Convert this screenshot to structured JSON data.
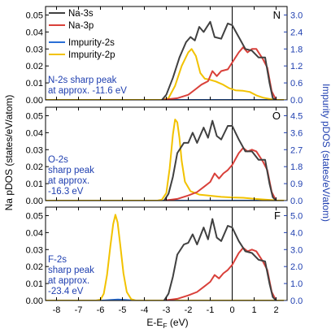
{
  "chart_data": {
    "type": "line",
    "x_axis": {
      "label": "E-E",
      "label_sub": "F",
      "label_tail": " (eV)",
      "ticks": [
        "-8",
        "-7",
        "-6",
        "-5",
        "-4",
        "-3",
        "-2",
        "-1",
        "0",
        "1",
        "2"
      ],
      "xlim": [
        -8.5,
        2.5
      ]
    },
    "left_axis_label": "Na pDOS (states/eV/atom)",
    "right_axis_label": "Impurity pDOS (states/eV/atom)",
    "legend": [
      {
        "name": "Na-3s",
        "color": "#404040"
      },
      {
        "name": "Na-3p",
        "color": "#d9403a"
      },
      {
        "name": "Impurity-2s",
        "color": "#2a6fd6"
      },
      {
        "name": "Impurity-2p",
        "color": "#f2c200"
      }
    ],
    "colors": {
      "na3s": "#404040",
      "na3p": "#d9403a",
      "imp2s": "#2a6fd6",
      "imp2p": "#f2c200",
      "right_axis": "#1f3fb0"
    },
    "panels": [
      {
        "label": "N",
        "annotation": [
          "N-2s sharp peak",
          "at approx. -11.6 eV"
        ],
        "ylim_left": [
          0,
          0.055
        ],
        "yticks_left": [
          "0.00",
          "0.01",
          "0.02",
          "0.03",
          "0.04",
          "0.05"
        ],
        "ylim_right": [
          0,
          3.3
        ],
        "yticks_right": [
          "0.0",
          "0.6",
          "1.2",
          "1.8",
          "2.4",
          "3.0"
        ],
        "na3s": [
          [
            -3.2,
            0
          ],
          [
            -3.0,
            0.003
          ],
          [
            -2.7,
            0.013
          ],
          [
            -2.4,
            0.025
          ],
          [
            -2.1,
            0.034
          ],
          [
            -1.9,
            0.037
          ],
          [
            -1.7,
            0.035
          ],
          [
            -1.5,
            0.043
          ],
          [
            -1.3,
            0.04
          ],
          [
            -1.0,
            0.046
          ],
          [
            -0.8,
            0.037
          ],
          [
            -0.5,
            0.036
          ],
          [
            -0.2,
            0.045
          ],
          [
            0,
            0.044
          ],
          [
            0.3,
            0.037
          ],
          [
            0.6,
            0.03
          ],
          [
            0.9,
            0.029
          ],
          [
            1.2,
            0.025
          ],
          [
            1.5,
            0.025
          ],
          [
            1.7,
            0.01
          ],
          [
            1.85,
            0.001
          ],
          [
            2.0,
            0
          ]
        ],
        "na3p": [
          [
            -3.2,
            0
          ],
          [
            -2.5,
            0.001
          ],
          [
            -2.0,
            0.003
          ],
          [
            -1.7,
            0.006
          ],
          [
            -1.4,
            0.009
          ],
          [
            -1.1,
            0.011
          ],
          [
            -0.9,
            0.017
          ],
          [
            -0.7,
            0.014
          ],
          [
            -0.5,
            0.017
          ],
          [
            -0.2,
            0.018
          ],
          [
            0,
            0.022
          ],
          [
            0.3,
            0.028
          ],
          [
            0.5,
            0.031
          ],
          [
            0.7,
            0.028
          ],
          [
            0.9,
            0.03
          ],
          [
            1.1,
            0.03
          ],
          [
            1.4,
            0.024
          ],
          [
            1.6,
            0.019
          ],
          [
            1.8,
            0.005
          ],
          [
            2.0,
            0
          ]
        ],
        "imp2s": [
          [
            -8.5,
            0
          ],
          [
            2.5,
            0
          ]
        ],
        "imp2p": [
          [
            -8.5,
            0
          ],
          [
            -3.2,
            0
          ],
          [
            -2.9,
            0.06
          ],
          [
            -2.6,
            0.5
          ],
          [
            -2.3,
            1.2
          ],
          [
            -2.0,
            1.68
          ],
          [
            -1.85,
            1.8
          ],
          [
            -1.65,
            1.55
          ],
          [
            -1.45,
            0.95
          ],
          [
            -1.25,
            0.75
          ],
          [
            -1.05,
            0.72
          ],
          [
            -0.75,
            0.65
          ],
          [
            -0.45,
            0.55
          ],
          [
            -0.15,
            0.42
          ],
          [
            0.15,
            0.34
          ],
          [
            0.5,
            0.32
          ],
          [
            0.8,
            0.28
          ],
          [
            1.1,
            0.16
          ],
          [
            1.4,
            0.08
          ],
          [
            1.8,
            0.02
          ],
          [
            2.1,
            0
          ],
          [
            2.5,
            0
          ]
        ]
      },
      {
        "label": "O",
        "annotation": [
          "O-2s",
          "sharp peak",
          "at approx.",
          "-16.3 eV"
        ],
        "ylim_left": [
          0,
          0.055
        ],
        "yticks_left": [
          "0.00",
          "0.01",
          "0.02",
          "0.03",
          "0.04",
          "0.05"
        ],
        "ylim_right": [
          0,
          4.95
        ],
        "yticks_right": [
          "0.0",
          "0.9",
          "1.8",
          "2.7",
          "3.6",
          "4.5"
        ],
        "na3s": [
          [
            -3.1,
            0
          ],
          [
            -2.9,
            0.004
          ],
          [
            -2.7,
            0.014
          ],
          [
            -2.5,
            0.028
          ],
          [
            -2.2,
            0.034
          ],
          [
            -2.0,
            0.034
          ],
          [
            -1.8,
            0.04
          ],
          [
            -1.6,
            0.034
          ],
          [
            -1.3,
            0.043
          ],
          [
            -1.1,
            0.037
          ],
          [
            -0.9,
            0.047
          ],
          [
            -0.7,
            0.038
          ],
          [
            -0.5,
            0.036
          ],
          [
            -0.2,
            0.044
          ],
          [
            0,
            0.044
          ],
          [
            0.3,
            0.036
          ],
          [
            0.6,
            0.029
          ],
          [
            0.9,
            0.029
          ],
          [
            1.2,
            0.024
          ],
          [
            1.5,
            0.024
          ],
          [
            1.7,
            0.01
          ],
          [
            1.85,
            0.002
          ],
          [
            2.0,
            0
          ]
        ],
        "na3p": [
          [
            -3.1,
            0
          ],
          [
            -2.5,
            0.001
          ],
          [
            -2.0,
            0.003
          ],
          [
            -1.6,
            0.005
          ],
          [
            -1.3,
            0.008
          ],
          [
            -1.0,
            0.011
          ],
          [
            -0.8,
            0.016
          ],
          [
            -0.6,
            0.013
          ],
          [
            -0.4,
            0.016
          ],
          [
            -0.2,
            0.018
          ],
          [
            0,
            0.021
          ],
          [
            0.3,
            0.028
          ],
          [
            0.5,
            0.031
          ],
          [
            0.7,
            0.029
          ],
          [
            0.9,
            0.03
          ],
          [
            1.1,
            0.029
          ],
          [
            1.4,
            0.023
          ],
          [
            1.6,
            0.018
          ],
          [
            1.8,
            0.005
          ],
          [
            2.0,
            0
          ]
        ],
        "imp2s": [
          [
            -8.5,
            0
          ],
          [
            2.5,
            0
          ]
        ],
        "imp2p": [
          [
            -8.5,
            0
          ],
          [
            -3.4,
            0
          ],
          [
            -3.2,
            0.05
          ],
          [
            -3.0,
            0.4
          ],
          [
            -2.85,
            1.7
          ],
          [
            -2.7,
            3.5
          ],
          [
            -2.6,
            4.3
          ],
          [
            -2.5,
            4.15
          ],
          [
            -2.4,
            3.3
          ],
          [
            -2.3,
            2.1
          ],
          [
            -2.15,
            1.0
          ],
          [
            -1.9,
            0.5
          ],
          [
            -1.5,
            0.32
          ],
          [
            -1.0,
            0.26
          ],
          [
            -0.5,
            0.2
          ],
          [
            0,
            0.17
          ],
          [
            0.5,
            0.15
          ],
          [
            1.0,
            0.1
          ],
          [
            1.5,
            0.05
          ],
          [
            2.0,
            0.01
          ],
          [
            2.5,
            0
          ]
        ]
      },
      {
        "label": "F",
        "annotation": [
          "F-2s",
          "sharp peak",
          "at approx.",
          "-23.4 eV"
        ],
        "ylim_left": [
          0,
          0.055
        ],
        "yticks_left": [
          "0.00",
          "0.01",
          "0.02",
          "0.03",
          "0.04",
          "0.05"
        ],
        "ylim_right": [
          0,
          5.5
        ],
        "yticks_right": [
          "0.0",
          "1.0",
          "2.0",
          "3.0",
          "4.0",
          "5.0"
        ],
        "na3s": [
          [
            -3.1,
            0
          ],
          [
            -2.9,
            0.004
          ],
          [
            -2.7,
            0.014
          ],
          [
            -2.5,
            0.027
          ],
          [
            -2.2,
            0.033
          ],
          [
            -2.0,
            0.034
          ],
          [
            -1.8,
            0.039
          ],
          [
            -1.6,
            0.033
          ],
          [
            -1.3,
            0.043
          ],
          [
            -1.1,
            0.036
          ],
          [
            -0.9,
            0.048
          ],
          [
            -0.7,
            0.037
          ],
          [
            -0.5,
            0.035
          ],
          [
            -0.2,
            0.044
          ],
          [
            0,
            0.043
          ],
          [
            0.3,
            0.035
          ],
          [
            0.6,
            0.029
          ],
          [
            0.9,
            0.028
          ],
          [
            1.2,
            0.024
          ],
          [
            1.5,
            0.023
          ],
          [
            1.7,
            0.01
          ],
          [
            1.85,
            0.002
          ],
          [
            2.0,
            0
          ]
        ],
        "na3p": [
          [
            -3.1,
            0
          ],
          [
            -2.5,
            0.001
          ],
          [
            -2.0,
            0.003
          ],
          [
            -1.6,
            0.005
          ],
          [
            -1.3,
            0.008
          ],
          [
            -1.0,
            0.011
          ],
          [
            -0.8,
            0.015
          ],
          [
            -0.6,
            0.013
          ],
          [
            -0.4,
            0.016
          ],
          [
            -0.2,
            0.018
          ],
          [
            0,
            0.021
          ],
          [
            0.3,
            0.028
          ],
          [
            0.5,
            0.031
          ],
          [
            0.7,
            0.029
          ],
          [
            0.9,
            0.03
          ],
          [
            1.1,
            0.029
          ],
          [
            1.4,
            0.023
          ],
          [
            1.6,
            0.018
          ],
          [
            1.8,
            0.005
          ],
          [
            2.0,
            0
          ]
        ],
        "imp2s": [
          [
            -8.5,
            0
          ],
          [
            -5.9,
            0
          ],
          [
            -5.5,
            0.04
          ],
          [
            -5.2,
            0.06
          ],
          [
            -4.9,
            0.04
          ],
          [
            -4.5,
            0
          ],
          [
            2.5,
            0
          ]
        ],
        "imp2p": [
          [
            -8.5,
            0
          ],
          [
            -6.2,
            0
          ],
          [
            -6.0,
            0.05
          ],
          [
            -5.85,
            0.4
          ],
          [
            -5.7,
            1.5
          ],
          [
            -5.55,
            3.2
          ],
          [
            -5.42,
            4.5
          ],
          [
            -5.32,
            5.05
          ],
          [
            -5.22,
            4.6
          ],
          [
            -5.1,
            3.3
          ],
          [
            -4.95,
            1.6
          ],
          [
            -4.8,
            0.5
          ],
          [
            -4.6,
            0.08
          ],
          [
            -4.4,
            0
          ],
          [
            2.5,
            0
          ]
        ]
      }
    ]
  }
}
